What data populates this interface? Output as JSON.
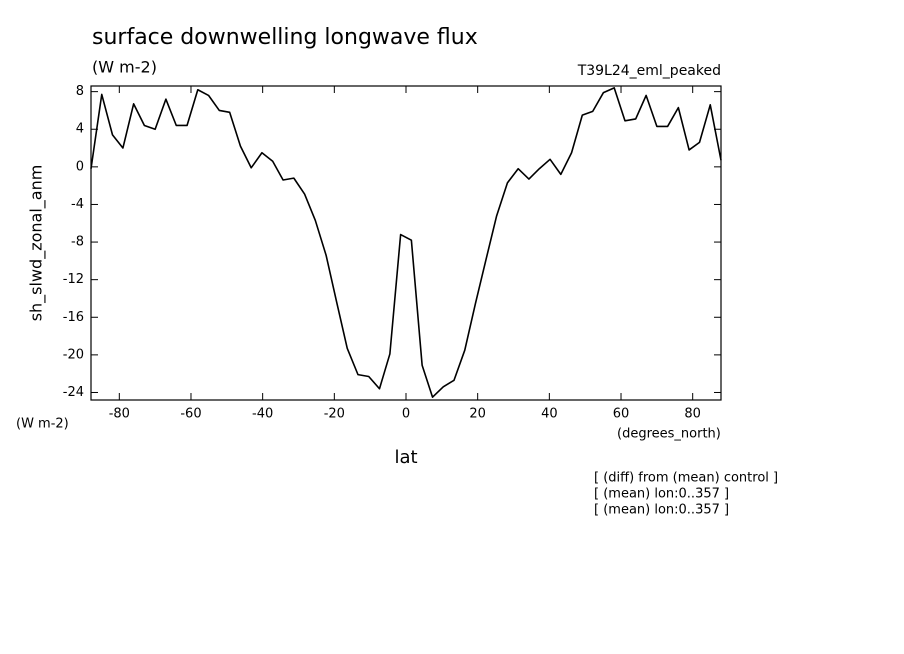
{
  "chart_data": {
    "type": "line",
    "title": "surface downwelling longwave flux",
    "subtitle": "(W m-2)",
    "dataset_label": "T39L24_eml_peaked",
    "y_label": "sh_slwd_zonal_anm",
    "y_units": "(W m-2)",
    "x_units": "(degrees_north)",
    "x_label": "lat",
    "notes": [
      "[ (diff) from (mean) control ]",
      "[ (mean) lon:0..357 ]",
      "[ (mean) lon:0..357 ]"
    ],
    "x": [
      -87.9,
      -84.9,
      -81.9,
      -79.0,
      -76.0,
      -73.0,
      -70.0,
      -67.0,
      -64.1,
      -61.1,
      -58.1,
      -55.1,
      -52.1,
      -49.2,
      -46.2,
      -43.2,
      -40.2,
      -37.2,
      -34.3,
      -31.3,
      -28.3,
      -25.3,
      -22.3,
      -19.4,
      -16.4,
      -13.4,
      -10.4,
      -7.4,
      -4.5,
      -1.5,
      1.5,
      4.5,
      7.4,
      10.4,
      13.4,
      16.4,
      19.4,
      22.3,
      25.3,
      28.3,
      31.3,
      34.3,
      37.2,
      40.2,
      43.2,
      46.2,
      49.2,
      52.1,
      55.1,
      58.1,
      61.1,
      64.1,
      67.0,
      70.0,
      73.0,
      76.0,
      79.0,
      81.9,
      84.9,
      87.9
    ],
    "series": [
      {
        "color": "#000000",
        "values": [
          -0.2,
          7.7,
          3.4,
          2.0,
          6.7,
          4.4,
          4.0,
          7.2,
          4.4,
          4.4,
          8.2,
          7.6,
          6.0,
          5.8,
          2.2,
          -0.1,
          1.5,
          0.6,
          -1.4,
          -1.2,
          -2.9,
          -5.7,
          -9.4,
          -14.3,
          -19.3,
          -22.1,
          -22.3,
          -23.6,
          -19.9,
          -7.2,
          -7.8,
          -21.1,
          -24.5,
          -23.4,
          -22.7,
          -19.5,
          -14.5,
          -9.9,
          -5.2,
          -1.7,
          -0.2,
          -1.3,
          -0.2,
          0.8,
          -0.8,
          1.5,
          5.5,
          5.9,
          7.9,
          8.4,
          4.9,
          5.1,
          7.6,
          4.3,
          4.3,
          6.3,
          1.8,
          2.6,
          6.6,
          0.7
        ]
      }
    ],
    "xlim": [
      -87.9,
      87.9
    ],
    "xticks": [
      -80,
      -60,
      -40,
      -20,
      0,
      20,
      40,
      60,
      80
    ],
    "ylim": [
      -24.8,
      8.6
    ],
    "yticks": [
      8,
      4,
      0,
      -4,
      -8,
      -12,
      -16,
      -20,
      -24
    ]
  }
}
